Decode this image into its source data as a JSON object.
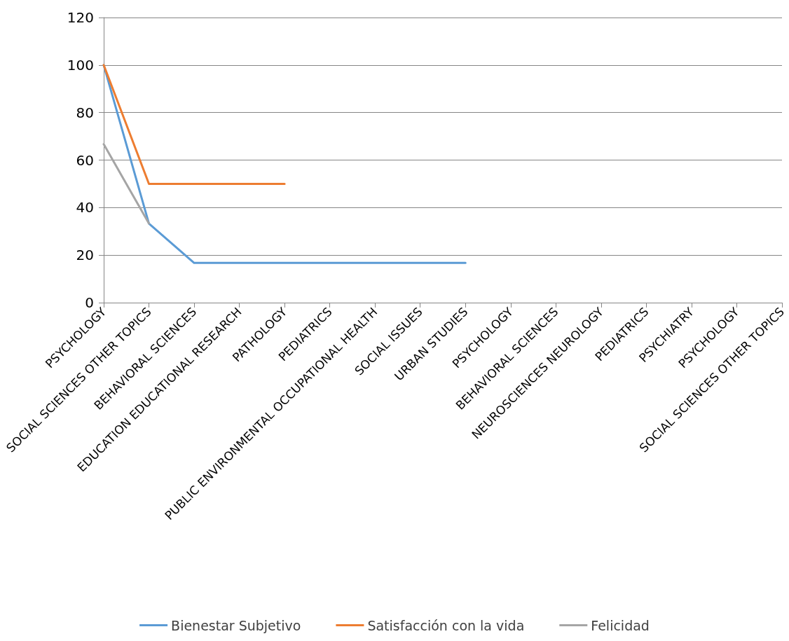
{
  "chart_data": {
    "type": "line",
    "categories": [
      "PSYCHOLOGY",
      "SOCIAL SCIENCES OTHER TOPICS",
      "BEHAVIORAL SCIENCES",
      "EDUCATION EDUCATIONAL RESEARCH",
      "PATHOLOGY",
      "PEDIATRICS",
      "PUBLIC ENVIRONMENTAL OCCUPATIONAL HEALTH",
      "SOCIAL ISSUES",
      "URBAN STUDIES",
      "PSYCHOLOGY",
      "BEHAVIORAL SCIENCES",
      "NEUROSCIENCES NEUROLOGY",
      "PEDIATRICS",
      "PSYCHIATRY",
      "PSYCHOLOGY",
      "SOCIAL SCIENCES OTHER TOPICS"
    ],
    "series": [
      {
        "name": "Bienestar Subjetivo",
        "color": "#5b9bd5",
        "values": [
          100,
          33.3,
          16.7,
          16.7,
          16.7,
          16.7,
          16.7,
          16.7,
          16.7,
          null,
          null,
          null,
          null,
          null,
          null,
          null
        ]
      },
      {
        "name": "Satisfacción con la vida",
        "color": "#ed7d31",
        "values": [
          100,
          50,
          50,
          50,
          50,
          null,
          null,
          null,
          null,
          null,
          null,
          null,
          null,
          null,
          null,
          null
        ]
      },
      {
        "name": "Felicidad",
        "color": "#a5a5a5",
        "values": [
          66.7,
          33.3,
          null,
          null,
          null,
          null,
          null,
          null,
          null,
          null,
          null,
          null,
          null,
          null,
          null,
          null
        ]
      }
    ],
    "ylim": [
      0,
      120
    ],
    "yticks": [
      0,
      20,
      40,
      60,
      80,
      100,
      120
    ],
    "grid": "y",
    "legend": "bottom",
    "marker": "none",
    "line_style": "solid"
  }
}
